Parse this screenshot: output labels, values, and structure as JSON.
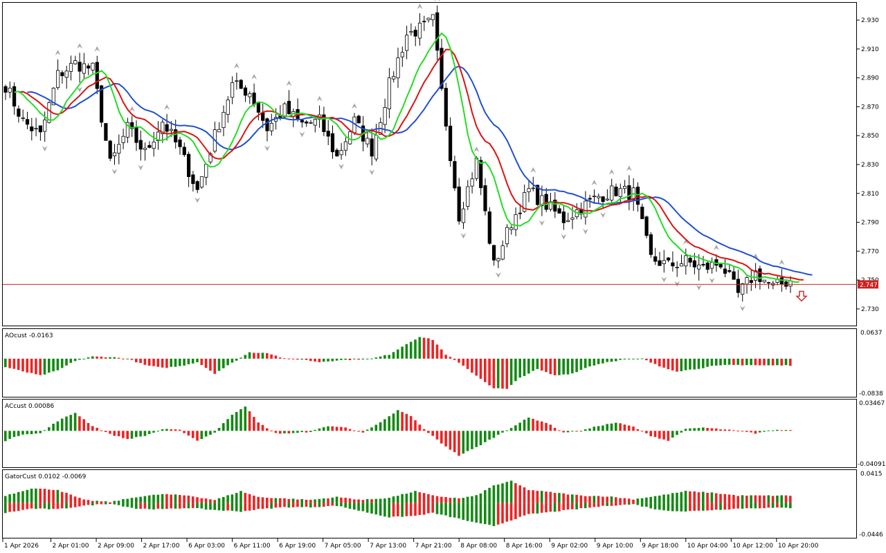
{
  "chart_data": [
    {
      "pane": "main",
      "type": "candlestick",
      "ylim": [
        2.718,
        2.942
      ],
      "y_ticks": [
        "2.930",
        "2.910",
        "2.890",
        "2.870",
        "2.850",
        "2.830",
        "2.810",
        "2.790",
        "2.770",
        "2.750",
        "2.730"
      ],
      "current_price": "2.747",
      "x_ticks": [
        "1 Apr 2026",
        "2 Apr 01:00",
        "2 Apr 09:00",
        "2 Apr 17:00",
        "6 Apr 03:00",
        "6 Apr 11:00",
        "6 Apr 19:00",
        "7 Apr 05:00",
        "7 Apr 13:00",
        "7 Apr 21:00",
        "8 Apr 08:00",
        "8 Apr 16:00",
        "9 Apr 02:00",
        "9 Apr 10:00",
        "9 Apr 18:00",
        "10 Apr 04:00",
        "10 Apr 12:00",
        "10 Apr 20:00"
      ],
      "close_ctrl": [
        [
          0,
          2.885
        ],
        [
          4,
          2.86
        ],
        [
          8,
          2.85
        ],
        [
          12,
          2.892
        ],
        [
          16,
          2.9
        ],
        [
          20,
          2.896
        ],
        [
          24,
          2.83
        ],
        [
          28,
          2.855
        ],
        [
          32,
          2.838
        ],
        [
          36,
          2.86
        ],
        [
          40,
          2.84
        ],
        [
          44,
          2.812
        ],
        [
          48,
          2.85
        ],
        [
          52,
          2.885
        ],
        [
          56,
          2.88
        ],
        [
          60,
          2.855
        ],
        [
          64,
          2.868
        ],
        [
          68,
          2.858
        ],
        [
          72,
          2.86
        ],
        [
          76,
          2.835
        ],
        [
          80,
          2.86
        ],
        [
          84,
          2.84
        ],
        [
          88,
          2.885
        ],
        [
          92,
          2.92
        ],
        [
          96,
          2.925
        ],
        [
          98,
          2.93
        ],
        [
          100,
          2.88
        ],
        [
          104,
          2.795
        ],
        [
          108,
          2.832
        ],
        [
          112,
          2.76
        ],
        [
          116,
          2.79
        ],
        [
          120,
          2.812
        ],
        [
          124,
          2.802
        ],
        [
          128,
          2.792
        ],
        [
          132,
          2.8
        ],
        [
          136,
          2.808
        ],
        [
          140,
          2.812
        ],
        [
          144,
          2.81
        ],
        [
          148,
          2.765
        ],
        [
          152,
          2.76
        ],
        [
          156,
          2.763
        ],
        [
          160,
          2.758
        ],
        [
          164,
          2.762
        ],
        [
          168,
          2.74
        ],
        [
          172,
          2.755
        ],
        [
          176,
          2.745
        ],
        [
          180,
          2.75
        ]
      ],
      "indicators": [
        {
          "name": "blue",
          "color": "#1f4fd0",
          "period": 21
        },
        {
          "name": "red",
          "color": "#dd1111",
          "period": 13
        },
        {
          "name": "green",
          "color": "#22dd22",
          "period": 8
        }
      ],
      "arrow_color": "#cc2222"
    },
    {
      "pane": "ao",
      "type": "histogram",
      "label": "AOcust -0.0163",
      "top_label": "0.0637",
      "bottom_label": "-0.0838",
      "ylim": [
        -0.0838,
        0.0637
      ],
      "ctrl": [
        [
          0,
          -0.02
        ],
        [
          4,
          -0.03
        ],
        [
          8,
          -0.04
        ],
        [
          12,
          -0.028
        ],
        [
          16,
          -0.005
        ],
        [
          20,
          0.005
        ],
        [
          24,
          0.004
        ],
        [
          28,
          0.0
        ],
        [
          32,
          -0.015
        ],
        [
          36,
          -0.022
        ],
        [
          40,
          -0.018
        ],
        [
          44,
          -0.008
        ],
        [
          48,
          -0.035
        ],
        [
          52,
          -0.01
        ],
        [
          56,
          0.015
        ],
        [
          60,
          0.014
        ],
        [
          64,
          0.0
        ],
        [
          68,
          -0.002
        ],
        [
          72,
          -0.008
        ],
        [
          76,
          -0.004
        ],
        [
          80,
          -0.002
        ],
        [
          84,
          0.0
        ],
        [
          88,
          0.01
        ],
        [
          92,
          0.035
        ],
        [
          95,
          0.052
        ],
        [
          98,
          0.045
        ],
        [
          101,
          0.01
        ],
        [
          104,
          -0.01
        ],
        [
          108,
          -0.04
        ],
        [
          112,
          -0.07
        ],
        [
          115,
          -0.072
        ],
        [
          118,
          -0.045
        ],
        [
          122,
          -0.025
        ],
        [
          126,
          -0.04
        ],
        [
          130,
          -0.035
        ],
        [
          134,
          -0.018
        ],
        [
          138,
          -0.008
        ],
        [
          142,
          -0.002
        ],
        [
          146,
          0.0
        ],
        [
          150,
          -0.018
        ],
        [
          154,
          -0.03
        ],
        [
          158,
          -0.025
        ],
        [
          162,
          -0.018
        ],
        [
          166,
          -0.015
        ],
        [
          170,
          -0.015
        ],
        [
          174,
          -0.016
        ],
        [
          180,
          -0.016
        ]
      ]
    },
    {
      "pane": "ac",
      "type": "histogram",
      "label": "ACcust 0.00086",
      "top_label": "0.03467",
      "bottom_label": "-0.04091",
      "ylim": [
        -0.04091,
        0.03467
      ],
      "ctrl": [
        [
          0,
          -0.012
        ],
        [
          4,
          -0.004
        ],
        [
          8,
          -0.003
        ],
        [
          12,
          0.012
        ],
        [
          16,
          0.022
        ],
        [
          20,
          0.006
        ],
        [
          24,
          -0.004
        ],
        [
          28,
          -0.01
        ],
        [
          32,
          -0.006
        ],
        [
          36,
          0.002
        ],
        [
          40,
          0.001
        ],
        [
          44,
          -0.012
        ],
        [
          48,
          -0.002
        ],
        [
          52,
          0.02
        ],
        [
          55,
          0.03
        ],
        [
          58,
          0.01
        ],
        [
          62,
          -0.003
        ],
        [
          66,
          -0.003
        ],
        [
          70,
          -0.001
        ],
        [
          74,
          0.006
        ],
        [
          78,
          0.004
        ],
        [
          82,
          -0.002
        ],
        [
          86,
          0.01
        ],
        [
          90,
          0.025
        ],
        [
          93,
          0.018
        ],
        [
          96,
          0.002
        ],
        [
          100,
          -0.015
        ],
        [
          104,
          -0.03
        ],
        [
          108,
          -0.02
        ],
        [
          112,
          -0.008
        ],
        [
          116,
          0.004
        ],
        [
          120,
          0.016
        ],
        [
          124,
          0.01
        ],
        [
          128,
          -0.002
        ],
        [
          132,
          0.0
        ],
        [
          136,
          0.006
        ],
        [
          140,
          0.01
        ],
        [
          144,
          0.005
        ],
        [
          148,
          -0.006
        ],
        [
          152,
          -0.012
        ],
        [
          156,
          0.002
        ],
        [
          160,
          0.004
        ],
        [
          164,
          0.002
        ],
        [
          168,
          0.0
        ],
        [
          172,
          -0.003
        ],
        [
          176,
          0.001
        ],
        [
          180,
          0.001
        ]
      ]
    },
    {
      "pane": "gator",
      "type": "histogram-dual",
      "label": "GatorCust 0.0102 -0.0069",
      "top_label": "0.0415",
      "bottom_label": "-0.0446",
      "ylim": [
        -0.0446,
        0.0415
      ],
      "upper_ctrl": [
        [
          0,
          0.01
        ],
        [
          6,
          0.02
        ],
        [
          12,
          0.018
        ],
        [
          18,
          0.004
        ],
        [
          24,
          0.001
        ],
        [
          30,
          0.008
        ],
        [
          36,
          0.012
        ],
        [
          42,
          0.01
        ],
        [
          48,
          0.004
        ],
        [
          54,
          0.016
        ],
        [
          58,
          0.008
        ],
        [
          64,
          0.006
        ],
        [
          70,
          0.004
        ],
        [
          76,
          0.008
        ],
        [
          82,
          0.004
        ],
        [
          88,
          0.007
        ],
        [
          94,
          0.016
        ],
        [
          98,
          0.01
        ],
        [
          104,
          0.006
        ],
        [
          108,
          0.01
        ],
        [
          112,
          0.024
        ],
        [
          116,
          0.03
        ],
        [
          120,
          0.018
        ],
        [
          126,
          0.014
        ],
        [
          132,
          0.01
        ],
        [
          138,
          0.009
        ],
        [
          144,
          0.005
        ],
        [
          150,
          0.01
        ],
        [
          156,
          0.016
        ],
        [
          162,
          0.014
        ],
        [
          168,
          0.01
        ],
        [
          174,
          0.01
        ],
        [
          180,
          0.01
        ]
      ],
      "lower_ctrl": [
        [
          0,
          -0.014
        ],
        [
          6,
          -0.008
        ],
        [
          12,
          -0.009
        ],
        [
          18,
          -0.004
        ],
        [
          24,
          -0.001
        ],
        [
          30,
          -0.008
        ],
        [
          36,
          -0.009
        ],
        [
          42,
          -0.007
        ],
        [
          48,
          -0.01
        ],
        [
          54,
          -0.012
        ],
        [
          58,
          -0.009
        ],
        [
          64,
          -0.006
        ],
        [
          70,
          -0.006
        ],
        [
          76,
          -0.004
        ],
        [
          82,
          -0.012
        ],
        [
          88,
          -0.02
        ],
        [
          94,
          -0.018
        ],
        [
          98,
          -0.014
        ],
        [
          104,
          -0.022
        ],
        [
          108,
          -0.028
        ],
        [
          112,
          -0.032
        ],
        [
          116,
          -0.024
        ],
        [
          120,
          -0.016
        ],
        [
          126,
          -0.012
        ],
        [
          132,
          -0.008
        ],
        [
          138,
          -0.004
        ],
        [
          144,
          -0.002
        ],
        [
          150,
          -0.01
        ],
        [
          156,
          -0.012
        ],
        [
          162,
          -0.01
        ],
        [
          168,
          -0.008
        ],
        [
          174,
          -0.007
        ],
        [
          180,
          -0.007
        ]
      ],
      "up_color": "#128a12",
      "down_color": "#ee2222"
    }
  ],
  "colors": {
    "up_bar": "#128a12",
    "down_bar": "#ee2222",
    "price_line": "#cc2222",
    "candle_bull": "#ffffff",
    "candle_bear": "#000000",
    "fractal": "#a8a8a8"
  }
}
